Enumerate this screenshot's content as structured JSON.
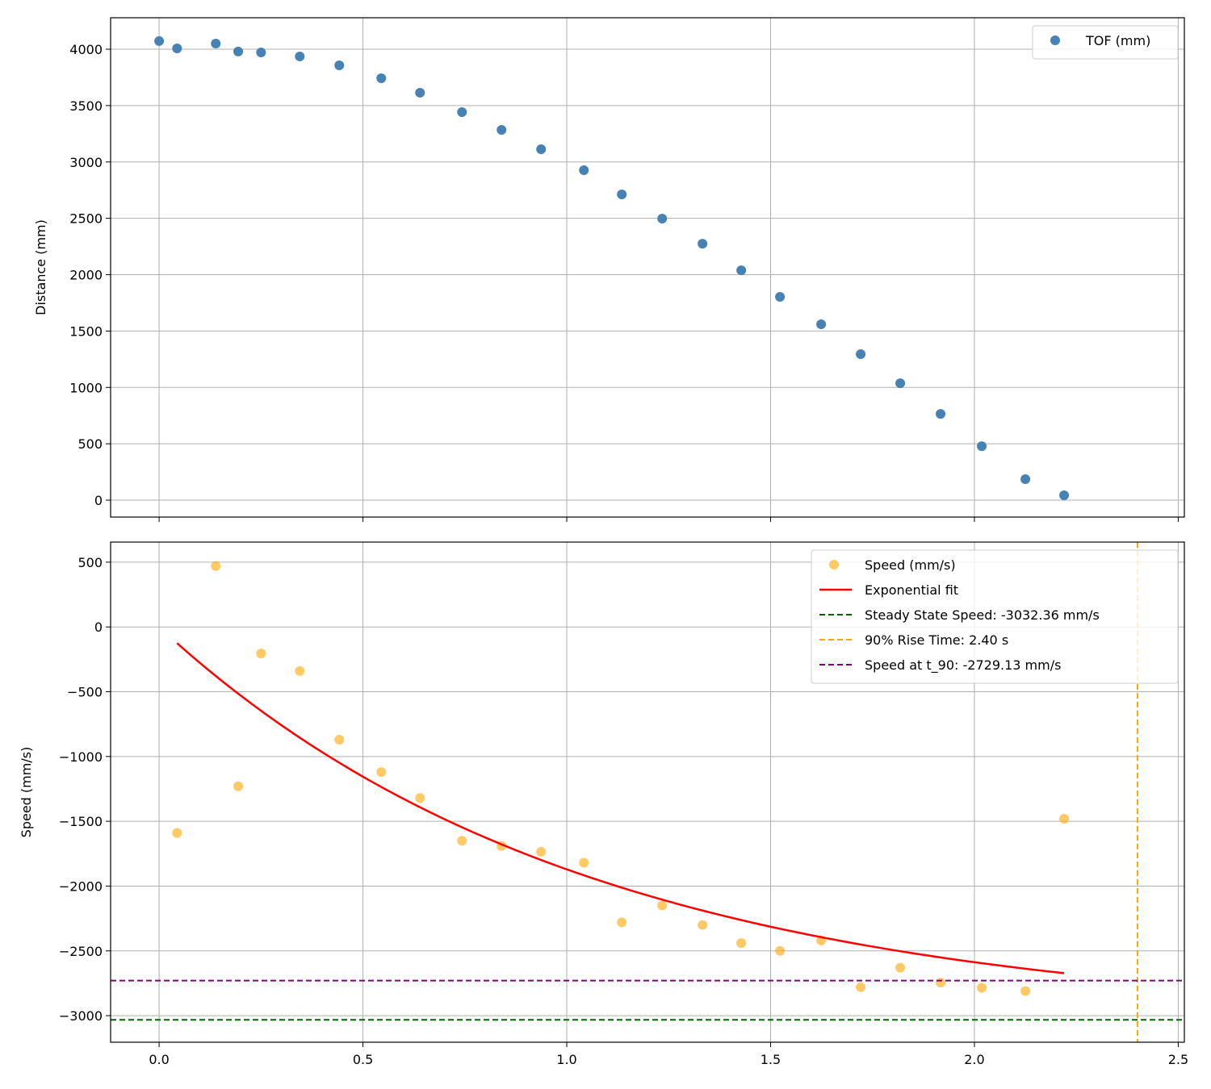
{
  "chart_data": [
    {
      "type": "scatter",
      "xlabel": "",
      "ylabel": "Distance (mm)",
      "xlim": [
        -0.119,
        2.515
      ],
      "ylim": [
        -150,
        4279
      ],
      "xticks": [
        "0.0",
        "0.5",
        "1.0",
        "1.5",
        "2.0",
        "2.5"
      ],
      "yticks": [
        "0",
        "500",
        "1000",
        "1500",
        "2000",
        "2500",
        "3000",
        "3500",
        "4000"
      ],
      "grid": true,
      "legend_position": "top-right",
      "series": [
        {
          "name": "TOF (mm)",
          "color": "#4682b4",
          "x": [
            0.0,
            0.044,
            0.139,
            0.194,
            0.25,
            0.345,
            0.442,
            0.545,
            0.64,
            0.743,
            0.84,
            0.937,
            1.042,
            1.135,
            1.234,
            1.333,
            1.428,
            1.523,
            1.624,
            1.721,
            1.818,
            1.917,
            2.018,
            2.125,
            2.22
          ],
          "y": [
            4072,
            4007,
            4050,
            3979,
            3971,
            3936,
            3857,
            3742,
            3614,
            3442,
            3284,
            3113,
            2927,
            2712,
            2497,
            2275,
            2039,
            1803,
            1560,
            1295,
            1037,
            765,
            479,
            186,
            43
          ]
        }
      ]
    },
    {
      "type": "scatter",
      "xlabel": "",
      "ylabel": "Speed (mm/s)",
      "xlim": [
        -0.119,
        2.515
      ],
      "ylim": [
        -3205,
        655
      ],
      "xticks": [
        "0.0",
        "0.5",
        "1.0",
        "1.5",
        "2.0",
        "2.5"
      ],
      "yticks": [
        "500",
        "0",
        "−500",
        "−1000",
        "−1500",
        "−2000",
        "−2500",
        "−3000"
      ],
      "grid": true,
      "legend_position": "top-right",
      "series": [
        {
          "name": "Speed (mm/s)",
          "color": "#ffa500",
          "x": [
            0.044,
            0.139,
            0.194,
            0.25,
            0.345,
            0.442,
            0.545,
            0.64,
            0.743,
            0.84,
            0.937,
            1.042,
            1.135,
            1.234,
            1.333,
            1.428,
            1.523,
            1.624,
            1.721,
            1.818,
            1.917,
            2.018,
            2.125,
            2.22
          ],
          "y": [
            -1590,
            470,
            -1230,
            -205,
            -340,
            -870,
            -1120,
            -1320,
            -1650,
            -1690,
            -1735,
            -1820,
            -2280,
            -2150,
            -2300,
            -2440,
            -2500,
            -2420,
            -2780,
            -2630,
            -2745,
            -2785,
            -2810,
            -1480
          ]
        },
        {
          "name": "Exponential fit",
          "color": "#ff0000",
          "type": "line",
          "model": "v = -3032.36*(1-exp(-t/1.042))",
          "x_range": [
            0.044,
            2.22
          ]
        },
        {
          "name": "Steady State Speed: -3032.36 mm/s",
          "color": "#006400",
          "type": "hline",
          "value": -3032.36
        },
        {
          "name": "90% Rise Time: 2.40 s",
          "color": "#ffa500",
          "type": "vline",
          "value": 2.4
        },
        {
          "name": "Speed at t_90: -2729.13 mm/s",
          "color": "#800080",
          "type": "hline",
          "value": -2729.13
        }
      ]
    }
  ]
}
